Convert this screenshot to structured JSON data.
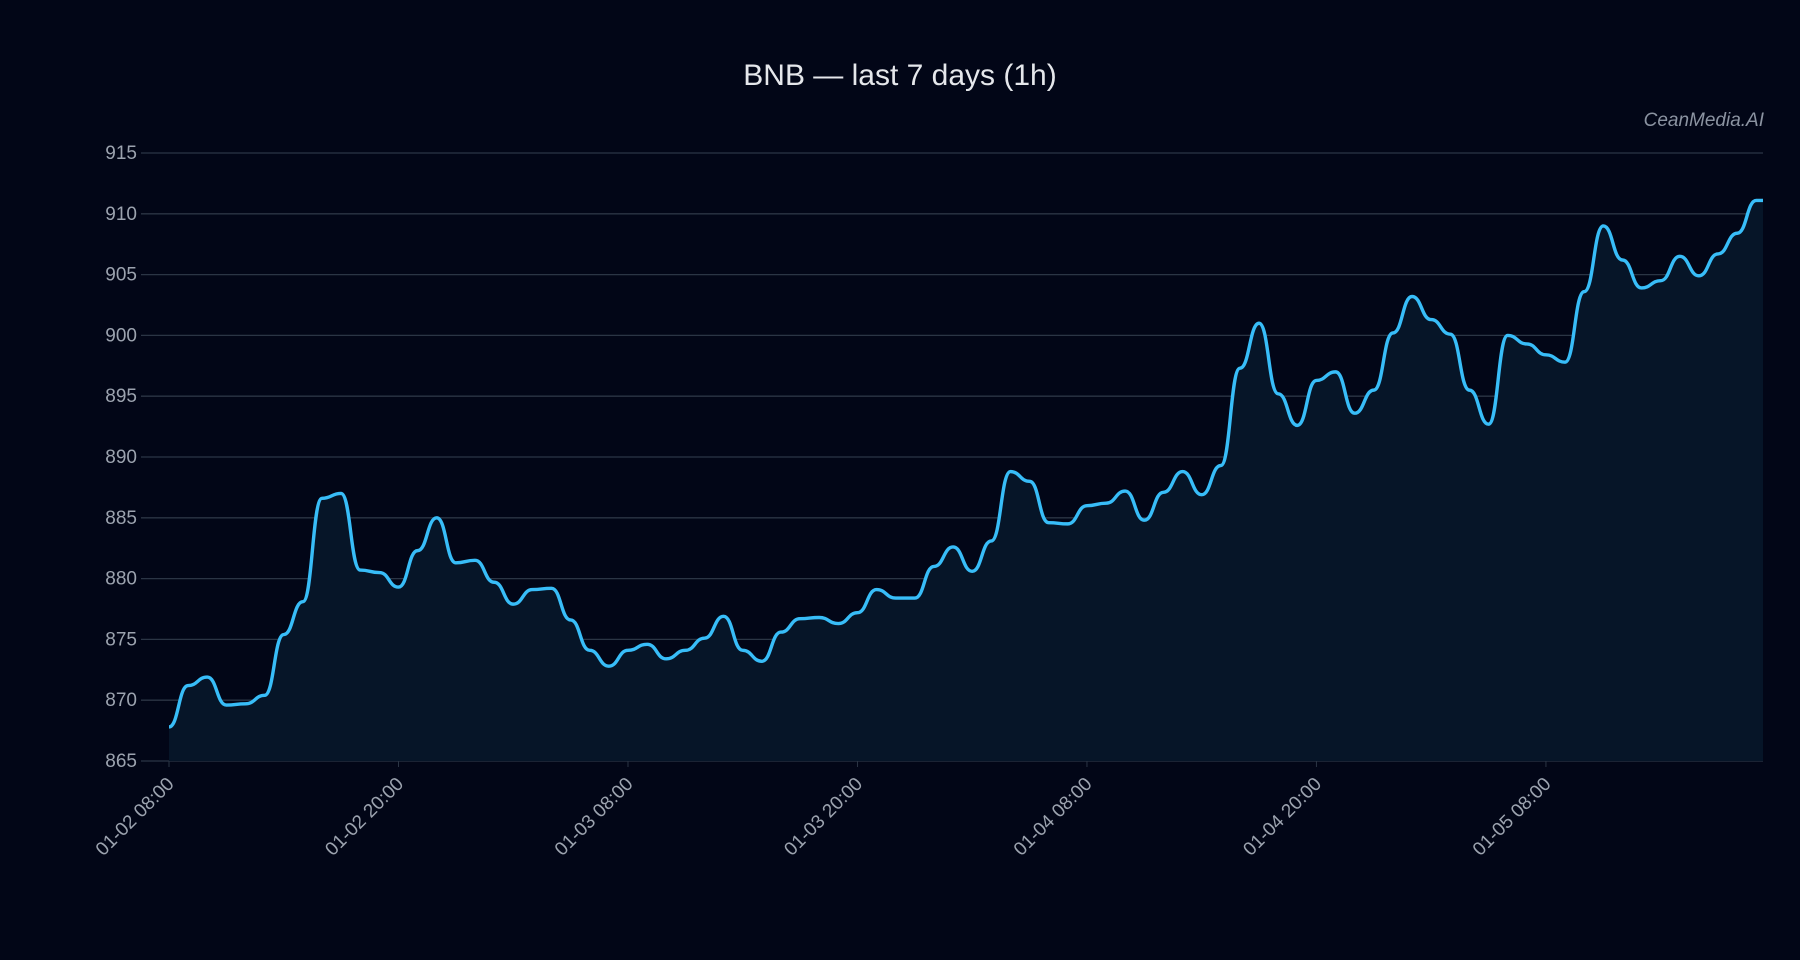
{
  "chart_data": {
    "type": "area",
    "title": "BNB — last 7 days (1h)",
    "watermark": "CeanMedia.AI",
    "xlabel": "",
    "ylabel": "",
    "ylim": [
      865,
      915
    ],
    "yticks": [
      865,
      870,
      875,
      880,
      885,
      890,
      895,
      900,
      905,
      910,
      915
    ],
    "x_start": "01-02 08:00",
    "x_interval": "1h",
    "xticks": [
      "01-02 08:00",
      "01-02 20:00",
      "01-03 08:00",
      "01-03 20:00",
      "01-04 08:00",
      "01-04 20:00",
      "01-05 08:00"
    ],
    "grid": true,
    "colors": {
      "line": "#38bdf8",
      "fill": "#061528",
      "grid": "#2b3545",
      "background": "#020617"
    },
    "values": [
      867.8,
      871.2,
      871.9,
      869.6,
      869.7,
      870.4,
      875.4,
      878.1,
      886.6,
      887.0,
      880.7,
      880.5,
      879.3,
      882.3,
      885.0,
      881.3,
      881.5,
      879.7,
      877.9,
      879.1,
      879.2,
      876.6,
      874.1,
      872.8,
      874.1,
      874.6,
      873.4,
      874.1,
      875.1,
      876.9,
      874.1,
      873.2,
      875.6,
      876.7,
      876.8,
      876.3,
      877.2,
      879.1,
      878.4,
      878.4,
      881.0,
      882.6,
      880.6,
      883.1,
      888.8,
      888.0,
      884.6,
      884.5,
      886.0,
      886.2,
      887.2,
      884.8,
      887.1,
      888.8,
      886.9,
      889.3,
      897.3,
      901.0,
      895.2,
      892.6,
      896.3,
      897.0,
      893.6,
      895.5,
      900.2,
      903.2,
      901.3,
      900.1,
      895.5,
      892.7,
      900.0,
      899.3,
      898.4,
      897.8,
      903.6,
      909.0,
      906.2,
      903.9,
      904.5,
      906.5,
      904.9,
      906.7,
      908.4,
      911.1
    ]
  }
}
